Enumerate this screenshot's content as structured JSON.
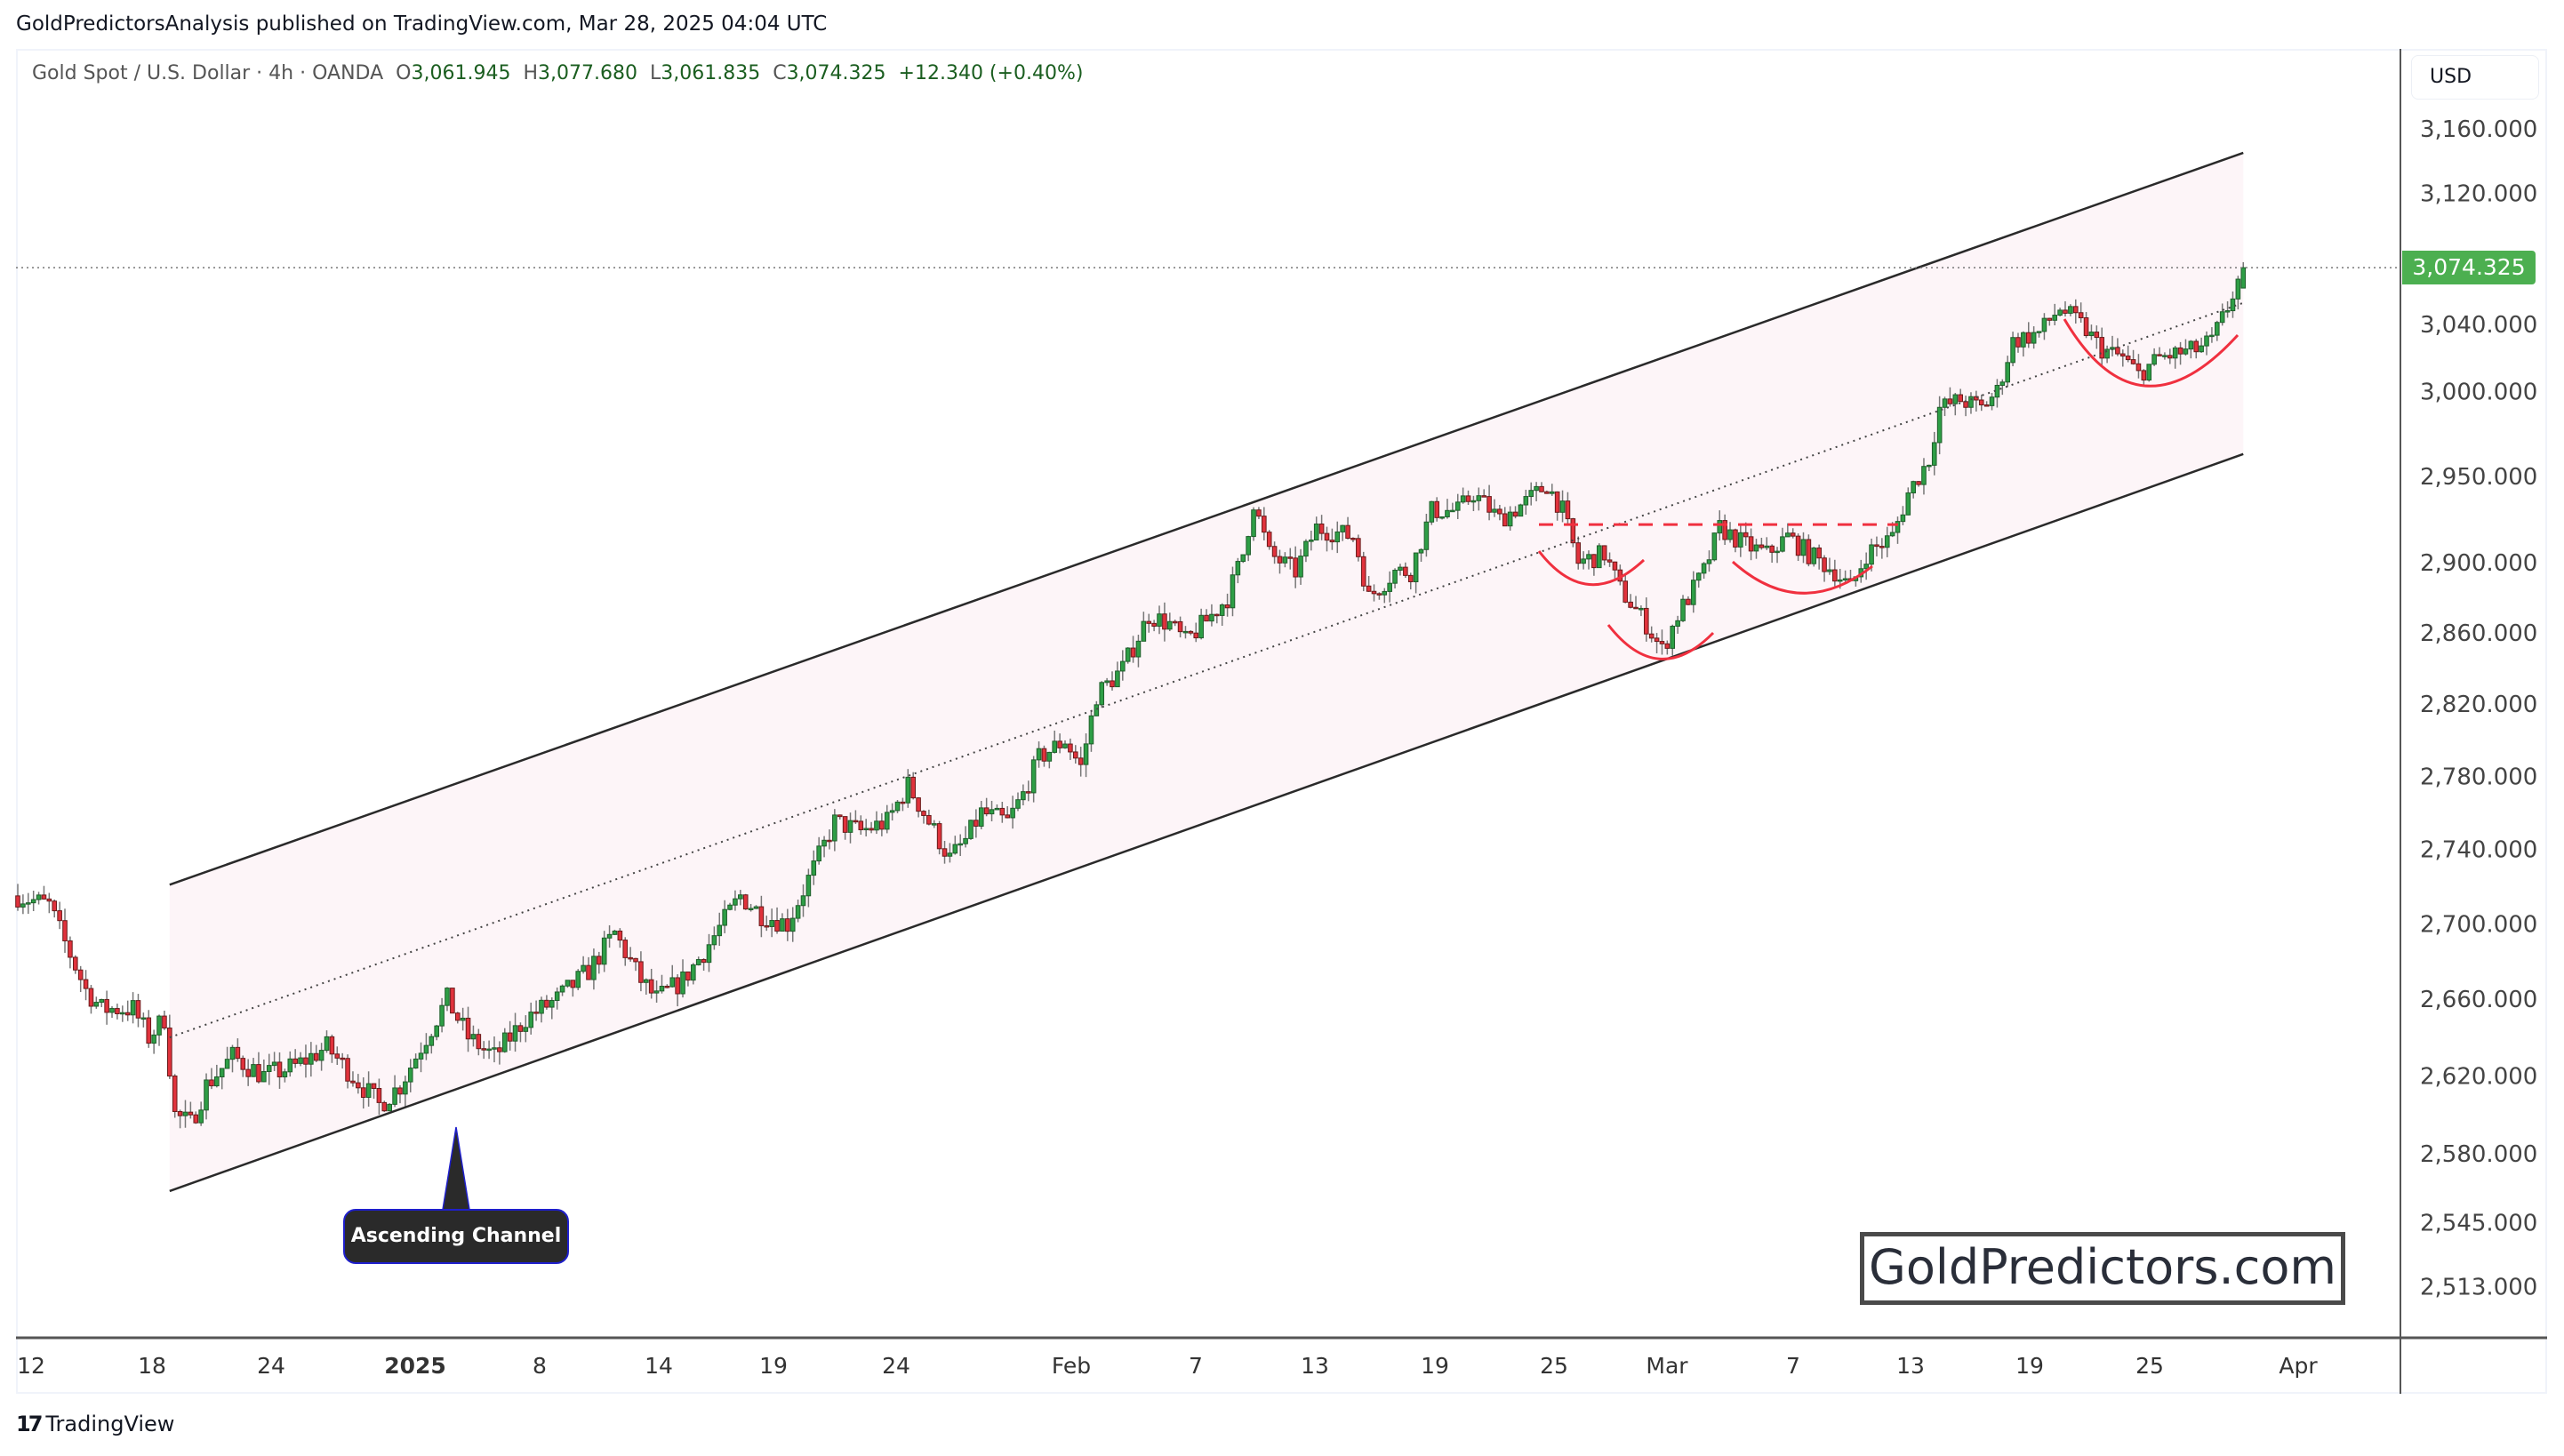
{
  "header": {
    "published": "GoldPredictorsAnalysis published on TradingView.com, Mar 28, 2025 04:04 UTC"
  },
  "legend": {
    "symbol": "Gold Spot / U.S. Dollar · 4h · OANDA",
    "open_label": "O",
    "open": "3,061.945",
    "high_label": "H",
    "high": "3,077.680",
    "low_label": "L",
    "low": "3,061.835",
    "close_label": "C",
    "close": "3,074.325",
    "change": "+12.340 (+0.40%)"
  },
  "price_axis": {
    "currency": "USD",
    "last_price": "3,074.325"
  },
  "annotations": {
    "callout": "Ascending Channel",
    "watermark": "GoldPredictors.com"
  },
  "footer": {
    "brand": "TradingView",
    "brand_mark": "17"
  },
  "colors": {
    "up": "#2e9e46",
    "down": "#e0323c",
    "wick": "#777777",
    "channel": "#2a2a2a",
    "channel_fill": "#fdf5f8",
    "arc": "#f0303f",
    "last_price": "#4caf50"
  },
  "chart_data": {
    "type": "candlestick",
    "title": "Gold Spot / U.S. Dollar · 4h · OANDA",
    "scale": "log",
    "ylim": [
      2500,
      3190
    ],
    "yticks": [
      3160,
      3120,
      3040,
      3000,
      2950,
      2900,
      2860,
      2820,
      2780,
      2740,
      2700,
      2660,
      2620,
      2580,
      2545,
      2513
    ],
    "ytick_labels": [
      "3,160.000",
      "3,120.000",
      "3,040.000",
      "3,000.000",
      "2,950.000",
      "2,900.000",
      "2,860.000",
      "2,820.000",
      "2,780.000",
      "2,740.000",
      "2,700.000",
      "2,660.000",
      "2,620.000",
      "2,580.000",
      "2,545.000",
      "2,513.000"
    ],
    "xtick_labels": [
      "12",
      "18",
      "24",
      "2025",
      "8",
      "14",
      "19",
      "24",
      "Feb",
      "7",
      "13",
      "19",
      "25",
      "Mar",
      "7",
      "13",
      "19",
      "25",
      "Apr"
    ],
    "bars": 426,
    "approx_close_path_bar_price": [
      [
        0,
        2715
      ],
      [
        6,
        2710
      ],
      [
        9,
        2690
      ],
      [
        13,
        2665
      ],
      [
        16,
        2655
      ],
      [
        22,
        2655
      ],
      [
        25,
        2640
      ],
      [
        28,
        2650
      ],
      [
        30,
        2600
      ],
      [
        33,
        2595
      ],
      [
        36,
        2615
      ],
      [
        41,
        2630
      ],
      [
        47,
        2620
      ],
      [
        53,
        2625
      ],
      [
        59,
        2635
      ],
      [
        64,
        2620
      ],
      [
        69,
        2605
      ],
      [
        73,
        2615
      ],
      [
        78,
        2640
      ],
      [
        82,
        2660
      ],
      [
        86,
        2640
      ],
      [
        91,
        2630
      ],
      [
        97,
        2650
      ],
      [
        103,
        2660
      ],
      [
        109,
        2675
      ],
      [
        114,
        2695
      ],
      [
        119,
        2670
      ],
      [
        122,
        2660
      ],
      [
        127,
        2670
      ],
      [
        131,
        2685
      ],
      [
        138,
        2715
      ],
      [
        142,
        2705
      ],
      [
        147,
        2700
      ],
      [
        152,
        2730
      ],
      [
        156,
        2755
      ],
      [
        161,
        2750
      ],
      [
        166,
        2755
      ],
      [
        170,
        2775
      ],
      [
        173,
        2760
      ],
      [
        178,
        2735
      ],
      [
        181,
        2745
      ],
      [
        184,
        2760
      ],
      [
        189,
        2755
      ],
      [
        192,
        2770
      ],
      [
        195,
        2790
      ],
      [
        200,
        2800
      ],
      [
        203,
        2785
      ],
      [
        206,
        2825
      ],
      [
        211,
        2840
      ],
      [
        216,
        2870
      ],
      [
        220,
        2865
      ],
      [
        223,
        2855
      ],
      [
        228,
        2870
      ],
      [
        231,
        2880
      ],
      [
        234,
        2905
      ],
      [
        236,
        2935
      ],
      [
        239,
        2905
      ],
      [
        244,
        2895
      ],
      [
        248,
        2920
      ],
      [
        255,
        2915
      ],
      [
        256,
        2905
      ],
      [
        258,
        2880
      ],
      [
        263,
        2895
      ],
      [
        266,
        2895
      ],
      [
        270,
        2930
      ],
      [
        275,
        2930
      ],
      [
        278,
        2940
      ],
      [
        283,
        2925
      ],
      [
        288,
        2935
      ],
      [
        292,
        2945
      ],
      [
        295,
        2930
      ],
      [
        298,
        2900
      ],
      [
        303,
        2905
      ],
      [
        306,
        2885
      ],
      [
        311,
        2865
      ],
      [
        314,
        2850
      ],
      [
        317,
        2870
      ],
      [
        322,
        2895
      ],
      [
        325,
        2920
      ],
      [
        330,
        2910
      ],
      [
        334,
        2905
      ],
      [
        338,
        2915
      ],
      [
        342,
        2905
      ],
      [
        347,
        2895
      ],
      [
        350,
        2885
      ],
      [
        353,
        2905
      ],
      [
        358,
        2915
      ],
      [
        361,
        2940
      ],
      [
        365,
        2960
      ],
      [
        367,
        2990
      ],
      [
        371,
        2995
      ],
      [
        375,
        2990
      ],
      [
        378,
        3000
      ],
      [
        381,
        3030
      ],
      [
        386,
        3035
      ],
      [
        390,
        3050
      ],
      [
        394,
        3040
      ],
      [
        398,
        3025
      ],
      [
        402,
        3020
      ],
      [
        405,
        3010
      ],
      [
        409,
        3020
      ],
      [
        416,
        3025
      ],
      [
        419,
        3030
      ],
      [
        422,
        3050
      ],
      [
        425,
        3074.325
      ]
    ],
    "last_bar": {
      "open": 3061.945,
      "high": 3077.68,
      "low": 3061.835,
      "close": 3074.325
    },
    "channel": {
      "upper": [
        [
          29,
          2721
        ],
        [
          425,
          3145
        ]
      ],
      "middle": [
        [
          29,
          2640
        ],
        [
          425,
          3053
        ]
      ],
      "lower": [
        [
          29,
          2561
        ],
        [
          425,
          2963
        ]
      ]
    },
    "neckline_price": 2922
  }
}
